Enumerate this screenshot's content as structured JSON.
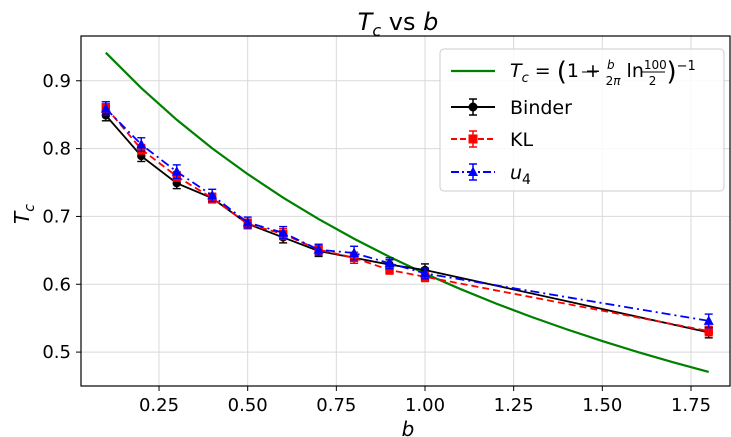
{
  "chart_data": {
    "type": "line",
    "title": "T_c vs b",
    "xlabel": "b",
    "ylabel": "T_c",
    "xlim": [
      0.03,
      1.86
    ],
    "ylim": [
      0.45,
      0.966
    ],
    "xticks": [
      0.25,
      0.5,
      0.75,
      1.0,
      1.25,
      1.5,
      1.75
    ],
    "xtick_labels": [
      "0.25",
      "0.50",
      "0.75",
      "1.00",
      "1.25",
      "1.50",
      "1.75"
    ],
    "yticks": [
      0.5,
      0.6,
      0.7,
      0.8,
      0.9
    ],
    "ytick_labels": [
      "0.5",
      "0.6",
      "0.7",
      "0.8",
      "0.9"
    ],
    "grid": true,
    "legend_position": "top-right",
    "series": [
      {
        "name": "T_c = (1 + b/2π ln 100/2)^-1",
        "kind": "curve",
        "color": "#008000",
        "dash": "solid",
        "x": [
          0.1,
          0.2,
          0.3,
          0.4,
          0.5,
          0.6,
          0.7,
          0.8,
          0.9,
          1.0,
          1.1,
          1.2,
          1.3,
          1.4,
          1.5,
          1.6,
          1.7,
          1.8
        ],
        "y": [
          0.9414,
          0.8892,
          0.8425,
          0.8004,
          0.7624,
          0.7277,
          0.6961,
          0.6671,
          0.6404,
          0.6157,
          0.5929,
          0.5716,
          0.5519,
          0.5335,
          0.5162,
          0.5001,
          0.485,
          0.4707
        ]
      },
      {
        "name": "Binder",
        "kind": "errorbar",
        "color": "#000000",
        "dash": "solid",
        "marker": "circle",
        "x": [
          0.1,
          0.2,
          0.3,
          0.4,
          0.5,
          0.6,
          0.7,
          0.8,
          0.9,
          1.0,
          1.8
        ],
        "y": [
          0.849,
          0.789,
          0.749,
          0.727,
          0.689,
          0.669,
          0.649,
          0.639,
          0.629,
          0.621,
          0.529
        ],
        "err": [
          0.008,
          0.008,
          0.008,
          0.007,
          0.007,
          0.008,
          0.008,
          0.008,
          0.007,
          0.009,
          0.008
        ]
      },
      {
        "name": "KL",
        "kind": "errorbar",
        "color": "#ff0000",
        "dash": "dashed",
        "marker": "square",
        "x": [
          0.1,
          0.2,
          0.3,
          0.4,
          0.5,
          0.6,
          0.7,
          0.8,
          0.9,
          1.0,
          1.8
        ],
        "y": [
          0.861,
          0.799,
          0.759,
          0.727,
          0.689,
          0.674,
          0.651,
          0.639,
          0.621,
          0.611,
          0.531
        ],
        "err": [
          0.008,
          0.007,
          0.007,
          0.007,
          0.007,
          0.008,
          0.007,
          0.008,
          0.006,
          0.007,
          0.007
        ]
      },
      {
        "name": "u_4",
        "kind": "errorbar",
        "color": "#0000ff",
        "dash": "dashdot",
        "marker": "triangle",
        "x": [
          0.1,
          0.2,
          0.3,
          0.4,
          0.5,
          0.6,
          0.7,
          0.8,
          0.9,
          1.0,
          1.8
        ],
        "y": [
          0.859,
          0.806,
          0.766,
          0.731,
          0.691,
          0.676,
          0.651,
          0.646,
          0.631,
          0.616,
          0.546
        ],
        "err": [
          0.01,
          0.01,
          0.01,
          0.009,
          0.008,
          0.009,
          0.008,
          0.01,
          0.008,
          0.008,
          0.01
        ]
      }
    ]
  }
}
